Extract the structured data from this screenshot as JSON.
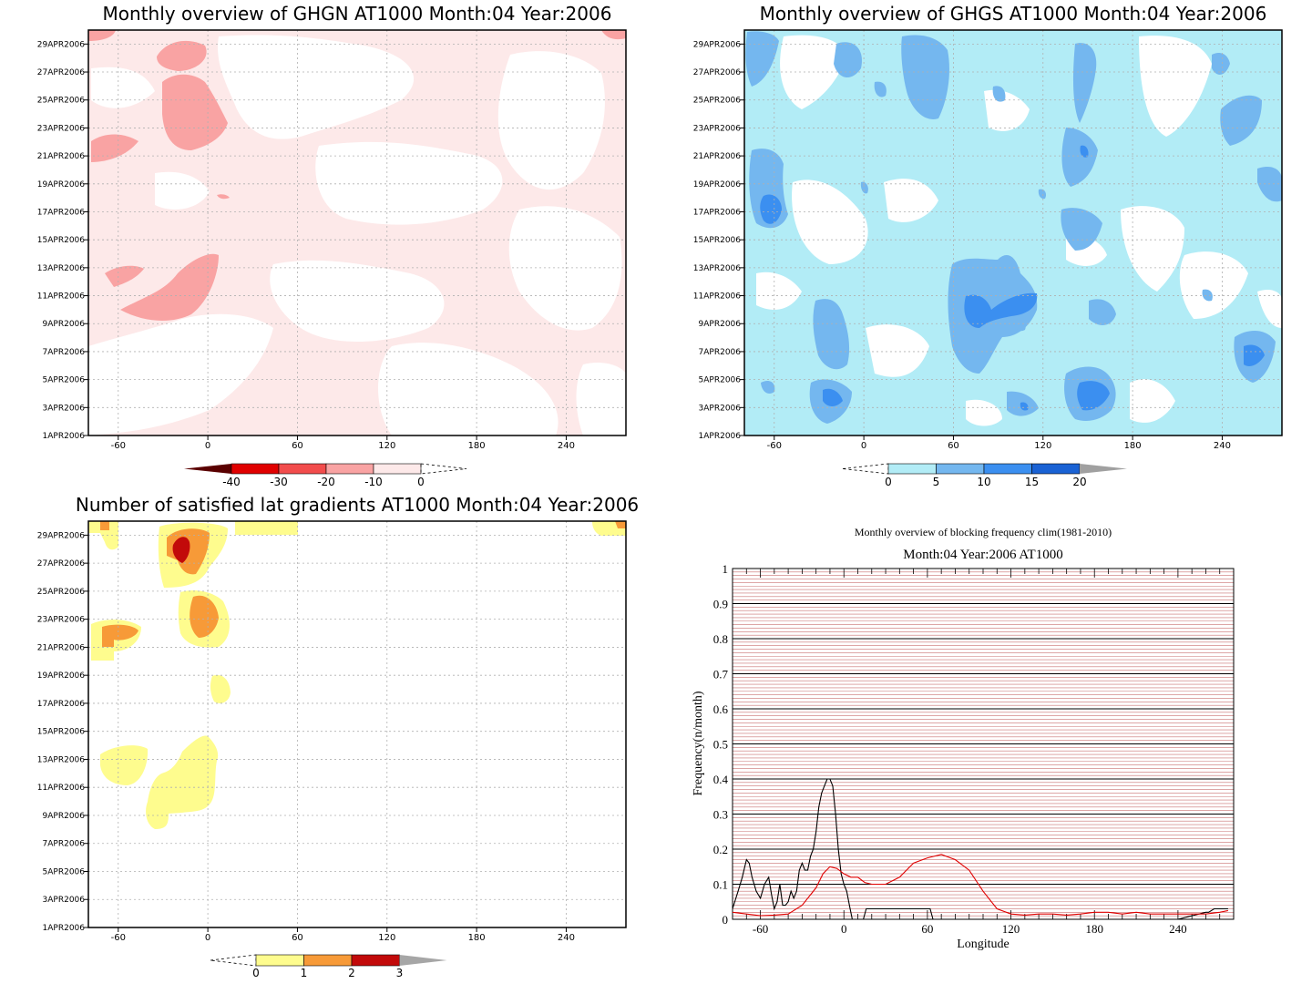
{
  "colors": {
    "ghgn": {
      "c_m40": "#5a0000",
      "c_m30": "#e00000",
      "c_m20": "#f24c4c",
      "c_m10": "#f9a3a3",
      "c_0": "#fde9e9"
    },
    "ghgs": {
      "c0": "#b2ecf6",
      "c5": "#74b7ef",
      "c10": "#3b8ff0",
      "c15": "#1a62d4",
      "c20": "#a0a0a0"
    },
    "grad": {
      "c0": "#fefc8e",
      "c1": "#f79a38",
      "c2": "#c20a0a",
      "c3": "#a6a6a6"
    },
    "freq_black": "#000000",
    "freq_red": "#e00000",
    "grid_red": "#c97070"
  },
  "panels": [
    {
      "id": "ghgn",
      "title": "Monthly overview of GHGN AT1000 Month:04 Year:2006",
      "x_ticks": [
        "-60",
        "0",
        "60",
        "120",
        "180",
        "240"
      ],
      "y_ticks": [
        "29APR2006",
        "27APR2006",
        "25APR2006",
        "23APR2006",
        "21APR2006",
        "19APR2006",
        "17APR2006",
        "15APR2006",
        "13APR2006",
        "11APR2006",
        "9APR2006",
        "7APR2006",
        "5APR2006",
        "3APR2006",
        "1APR2006"
      ],
      "colorbar_labels": [
        "-40",
        "-30",
        "-20",
        "-10",
        "0"
      ]
    },
    {
      "id": "ghgs",
      "title": "Monthly overview of GHGS AT1000 Month:04 Year:2006",
      "x_ticks": [
        "-60",
        "0",
        "60",
        "120",
        "180",
        "240"
      ],
      "y_ticks": [
        "29APR2006",
        "27APR2006",
        "25APR2006",
        "23APR2006",
        "21APR2006",
        "19APR2006",
        "17APR2006",
        "15APR2006",
        "13APR2006",
        "11APR2006",
        "9APR2006",
        "7APR2006",
        "5APR2006",
        "3APR2006",
        "1APR2006"
      ],
      "colorbar_labels": [
        "0",
        "5",
        "10",
        "15",
        "20"
      ]
    },
    {
      "id": "grad",
      "title": "Number of satisfied lat gradients AT1000 Month:04 Year:2006",
      "x_ticks": [
        "-60",
        "0",
        "60",
        "120",
        "180",
        "240"
      ],
      "y_ticks": [
        "29APR2006",
        "27APR2006",
        "25APR2006",
        "23APR2006",
        "21APR2006",
        "19APR2006",
        "17APR2006",
        "15APR2006",
        "13APR2006",
        "11APR2006",
        "9APR2006",
        "7APR2006",
        "5APR2006",
        "3APR2006",
        "1APR2006"
      ],
      "colorbar_labels": [
        "0",
        "1",
        "2",
        "3"
      ]
    }
  ],
  "chart_data": [
    {
      "type": "heatmap",
      "title": "Monthly overview of GHGN AT1000 Month:04 Year:2006",
      "x_range": [
        -80,
        280
      ],
      "y_range": [
        "1APR2006",
        "30APR2006"
      ],
      "levels": [
        -40,
        -30,
        -20,
        -10,
        0
      ],
      "grid": true
    },
    {
      "type": "heatmap",
      "title": "Monthly overview of GHGS AT1000 Month:04 Year:2006",
      "x_range": [
        -80,
        280
      ],
      "y_range": [
        "1APR2006",
        "30APR2006"
      ],
      "levels": [
        0,
        5,
        10,
        15,
        20
      ],
      "grid": true
    },
    {
      "type": "heatmap",
      "title": "Number of satisfied lat gradients AT1000 Month:04 Year:2006",
      "x_range": [
        -80,
        280
      ],
      "y_range": [
        "1APR2006",
        "30APR2006"
      ],
      "levels": [
        0,
        1,
        2,
        3
      ],
      "grid": true
    },
    {
      "type": "line",
      "title": "Monthly overview of blocking frequency clim(1981-2010)",
      "subtitle": "Month:04 Year:2006  AT1000",
      "xlabel": "Longitude",
      "ylabel": "Frequency(n/month)",
      "x_ticks": [
        "-60",
        "0",
        "60",
        "120",
        "180",
        "240"
      ],
      "y_ticks": [
        "0",
        "0.1",
        "0.2",
        "0.3",
        "0.4",
        "0.5",
        "0.6",
        "0.7",
        "0.8",
        "0.9",
        "1"
      ],
      "xlim": [
        -80,
        280
      ],
      "ylim": [
        0,
        1
      ],
      "series": [
        {
          "color": "black",
          "x": [
            -80,
            -76,
            -73,
            -70,
            -68,
            -66,
            -63,
            -60,
            -57,
            -54,
            -52,
            -50,
            -48,
            -46,
            -44,
            -42,
            -40,
            -38,
            -36,
            -34,
            -32,
            -30,
            -28,
            -26,
            -24,
            -22,
            -20,
            -18,
            -16,
            -14,
            -12,
            -10,
            -8,
            -6,
            -4,
            -2,
            0,
            2,
            4,
            6,
            8,
            10,
            12,
            14,
            16,
            18,
            20,
            60,
            62,
            64,
            66,
            140,
            240,
            260,
            262,
            266,
            270,
            276
          ],
          "y": [
            0.03,
            0.08,
            0.12,
            0.17,
            0.16,
            0.12,
            0.08,
            0.06,
            0.1,
            0.12,
            0.07,
            0.03,
            0.05,
            0.1,
            0.04,
            0.04,
            0.05,
            0.08,
            0.06,
            0.08,
            0.14,
            0.16,
            0.14,
            0.14,
            0.18,
            0.2,
            0.25,
            0.32,
            0.36,
            0.38,
            0.4,
            0.4,
            0.38,
            0.3,
            0.2,
            0.13,
            0.1,
            0.08,
            0.04,
            0.0,
            0.0,
            0.0,
            0.0,
            0.0,
            0.03,
            0.03,
            0.03,
            0.03,
            0.03,
            0.0,
            0.0,
            0.0,
            0.0,
            0.02,
            0.02,
            0.03,
            0.03,
            0.03
          ]
        },
        {
          "color": "red",
          "x": [
            -80,
            -70,
            -60,
            -50,
            -40,
            -30,
            -20,
            -15,
            -10,
            -5,
            0,
            5,
            10,
            15,
            20,
            30,
            40,
            50,
            60,
            70,
            80,
            90,
            100,
            110,
            120,
            130,
            140,
            150,
            160,
            170,
            180,
            190,
            200,
            210,
            220,
            230,
            240,
            250,
            260,
            270,
            276
          ],
          "y": [
            0.02,
            0.015,
            0.01,
            0.012,
            0.015,
            0.04,
            0.09,
            0.13,
            0.15,
            0.145,
            0.13,
            0.12,
            0.12,
            0.105,
            0.1,
            0.1,
            0.12,
            0.16,
            0.175,
            0.185,
            0.17,
            0.14,
            0.08,
            0.03,
            0.015,
            0.012,
            0.015,
            0.015,
            0.012,
            0.015,
            0.02,
            0.02,
            0.015,
            0.02,
            0.015,
            0.015,
            0.015,
            0.015,
            0.015,
            0.02,
            0.025
          ]
        }
      ],
      "grid": true
    }
  ],
  "line_chart": {
    "title": "Monthly overview of blocking frequency clim(1981-2010)",
    "subtitle": "Month:04 Year:2006  AT1000",
    "xlabel": "Longitude",
    "ylabel": "Frequency(n/month)",
    "x_ticks": [
      "-60",
      "0",
      "60",
      "120",
      "180",
      "240"
    ],
    "y_ticks": [
      "0",
      "0.1",
      "0.2",
      "0.3",
      "0.4",
      "0.5",
      "0.6",
      "0.7",
      "0.8",
      "0.9",
      "1"
    ]
  }
}
